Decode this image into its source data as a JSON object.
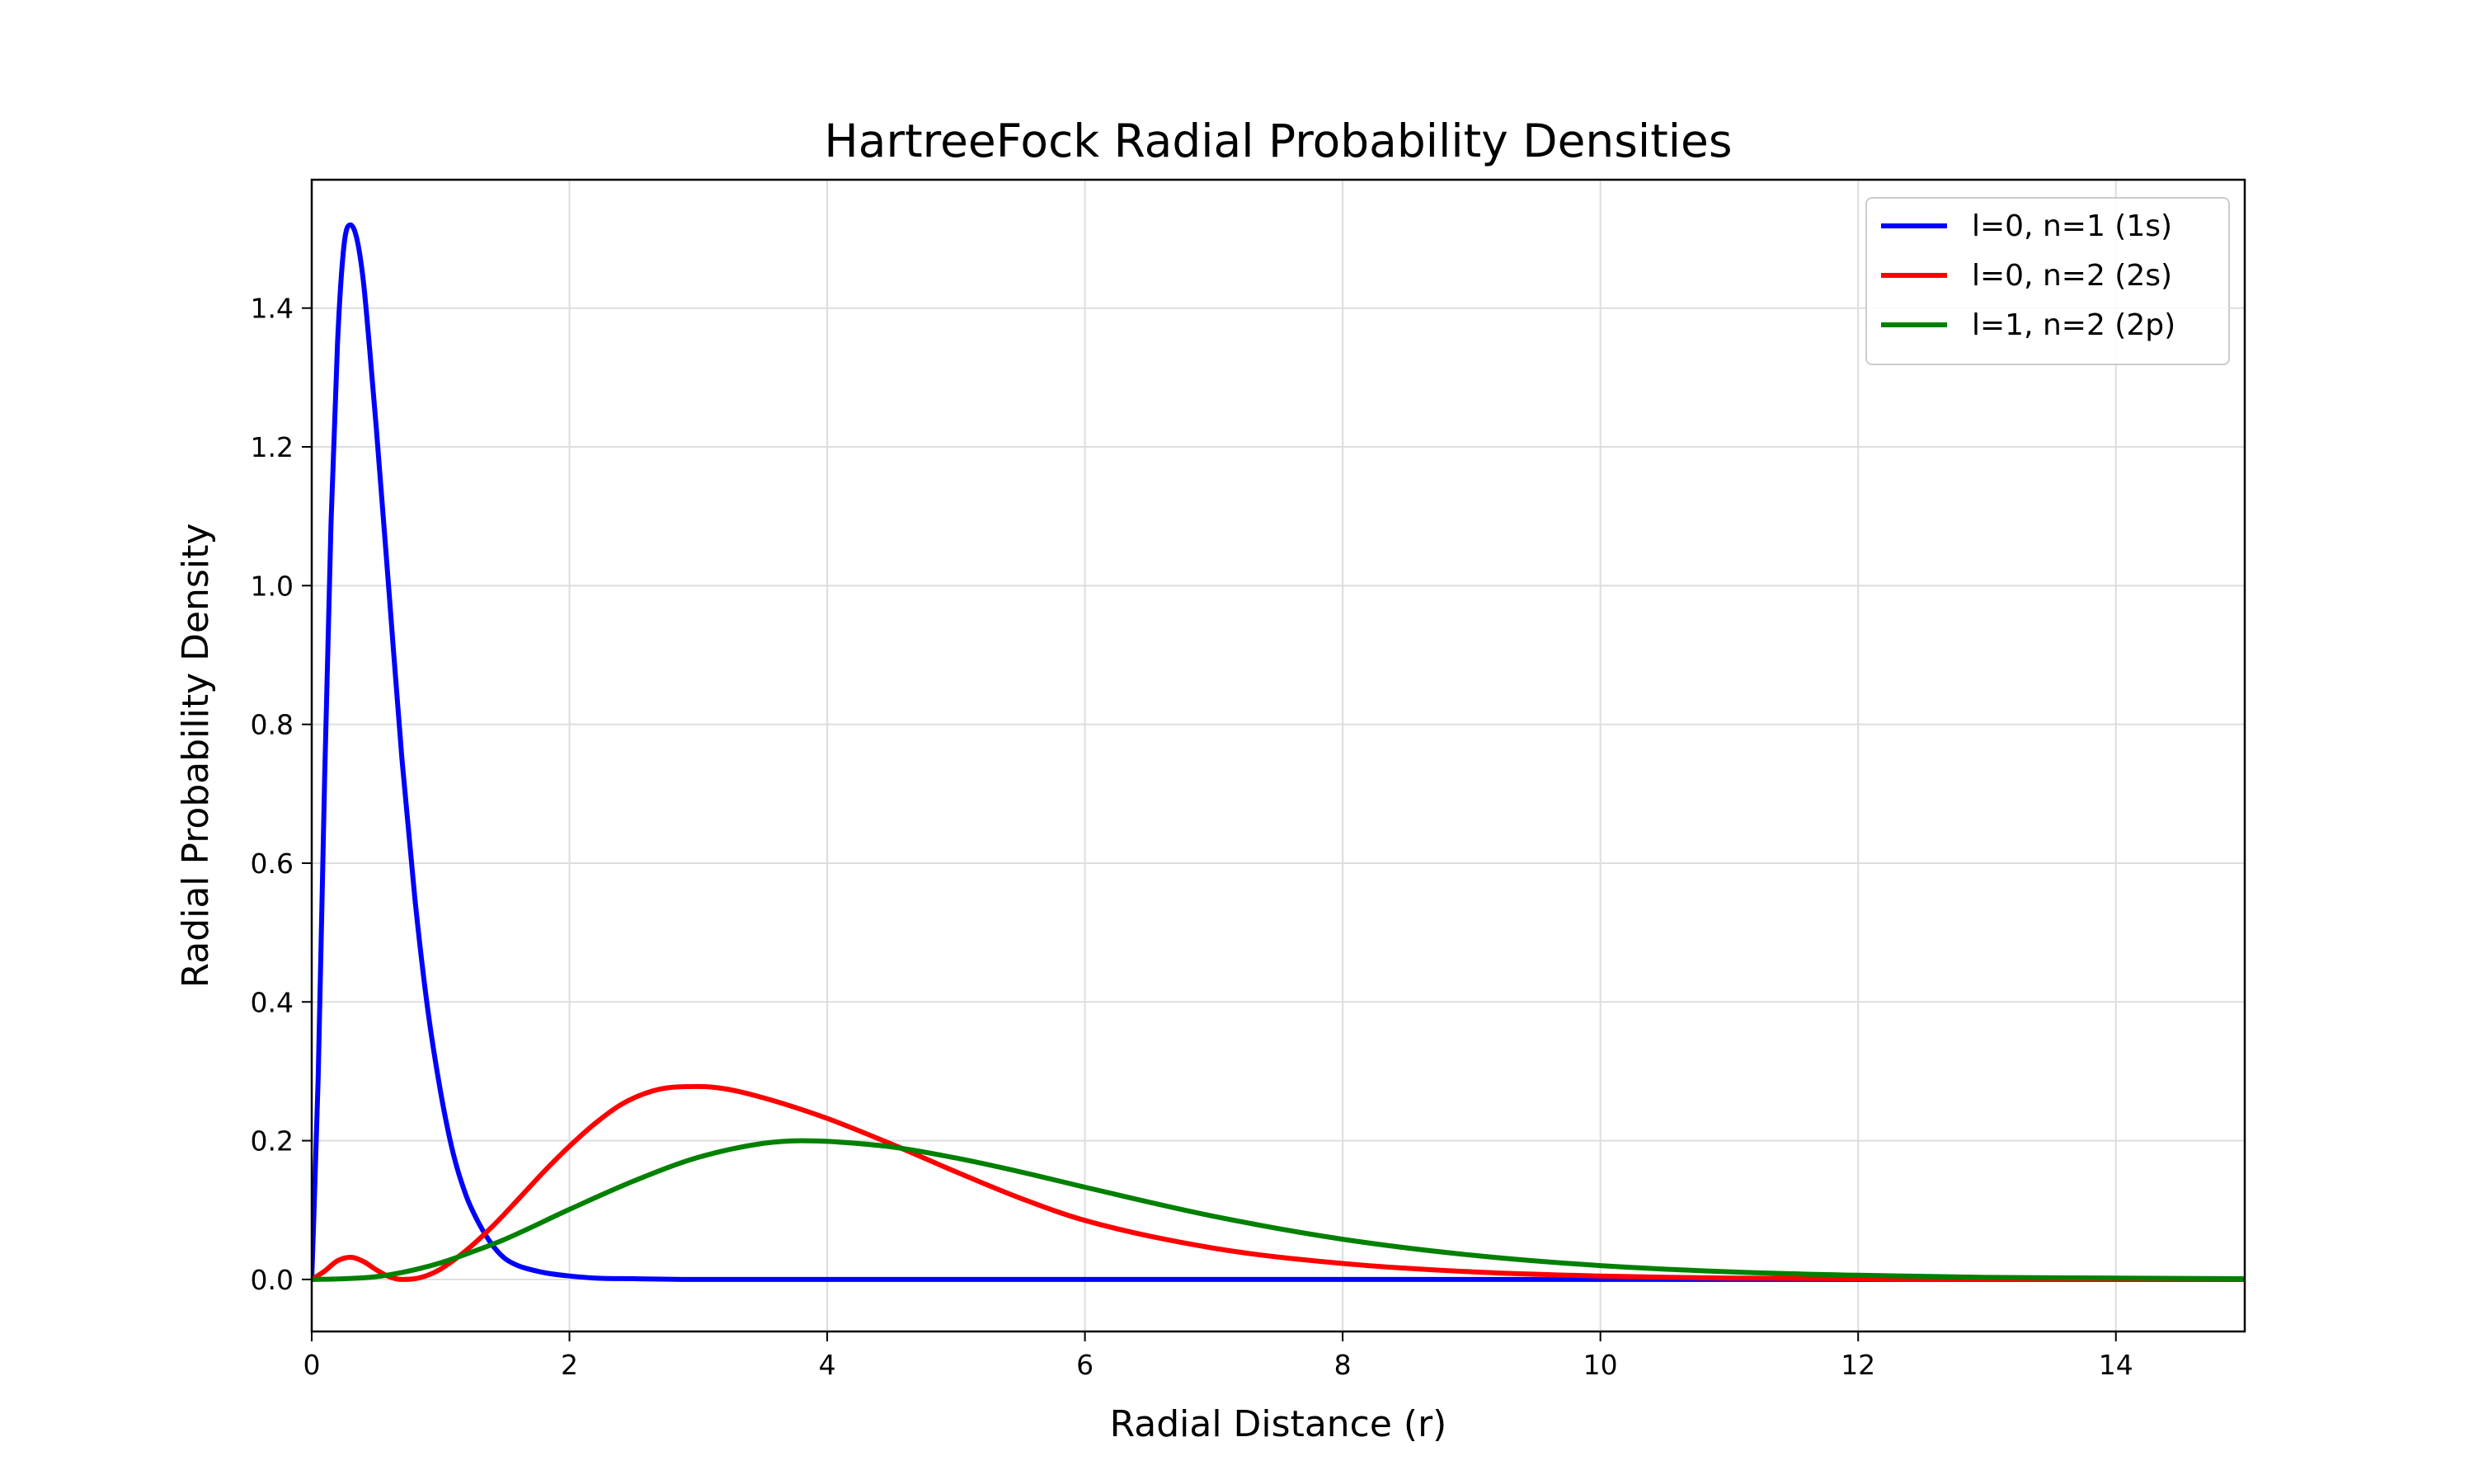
{
  "chart_data": {
    "type": "line",
    "title": "HartreeFock Radial Probability Densities",
    "xlabel": "Radial Distance (r)",
    "ylabel": "Radial Probability Density",
    "xlim": [
      0,
      15
    ],
    "ylim": [
      -0.075,
      1.585
    ],
    "xticks": [
      "0",
      "2",
      "4",
      "6",
      "8",
      "10",
      "12",
      "14"
    ],
    "yticks": [
      "0.0",
      "0.2",
      "0.4",
      "0.6",
      "0.8",
      "1.0",
      "1.2",
      "1.4"
    ],
    "grid": true,
    "legend_position": "top-right",
    "series": [
      {
        "name": "l=0, n=1 (1s)",
        "color": "#0000ff",
        "x": [
          0,
          0.05,
          0.1,
          0.15,
          0.2,
          0.25,
          0.3,
          0.35,
          0.4,
          0.45,
          0.5,
          0.6,
          0.7,
          0.8,
          0.9,
          1.0,
          1.1,
          1.2,
          1.3,
          1.4,
          1.5,
          1.6,
          1.8,
          2.0,
          2.2,
          2.5,
          3.0,
          4.0,
          6.0,
          8.0,
          10.0,
          12.0,
          15.0
        ],
        "y": [
          0,
          0.29,
          0.72,
          1.09,
          1.35,
          1.49,
          1.52,
          1.5,
          1.44,
          1.34,
          1.23,
          0.99,
          0.75,
          0.55,
          0.39,
          0.27,
          0.18,
          0.12,
          0.08,
          0.05,
          0.03,
          0.02,
          0.01,
          0.005,
          0.002,
          0.001,
          0,
          0,
          0,
          0,
          0,
          0,
          0
        ]
      },
      {
        "name": "l=0, n=2 (2s)",
        "color": "#ff0000",
        "x": [
          0,
          0.1,
          0.2,
          0.3,
          0.4,
          0.5,
          0.6,
          0.7,
          0.8,
          0.9,
          1.0,
          1.2,
          1.4,
          1.6,
          1.8,
          2.0,
          2.2,
          2.4,
          2.6,
          2.8,
          3.0,
          3.2,
          3.5,
          4.0,
          4.5,
          5.0,
          5.5,
          6.0,
          7.0,
          8.0,
          9.0,
          10.0,
          11.0,
          12.0,
          13.0,
          15.0
        ],
        "y": [
          0,
          0.012,
          0.027,
          0.032,
          0.026,
          0.014,
          0.004,
          0,
          0.001,
          0.006,
          0.015,
          0.042,
          0.076,
          0.115,
          0.155,
          0.192,
          0.225,
          0.252,
          0.269,
          0.277,
          0.278,
          0.275,
          0.262,
          0.232,
          0.195,
          0.155,
          0.117,
          0.085,
          0.045,
          0.023,
          0.011,
          0.005,
          0.002,
          0.001,
          0,
          0
        ]
      },
      {
        "name": "l=1, n=2 (2p)",
        "color": "#008000",
        "x": [
          0,
          0.25,
          0.5,
          0.75,
          1.0,
          1.25,
          1.5,
          2.0,
          2.5,
          3.0,
          3.5,
          3.8,
          4.0,
          4.5,
          5.0,
          5.5,
          6.0,
          7.0,
          8.0,
          9.0,
          10.0,
          11.0,
          12.0,
          13.0,
          14.0,
          15.0
        ],
        "y": [
          0,
          0.001,
          0.004,
          0.012,
          0.024,
          0.04,
          0.058,
          0.101,
          0.142,
          0.176,
          0.196,
          0.2,
          0.199,
          0.191,
          0.175,
          0.155,
          0.133,
          0.091,
          0.058,
          0.035,
          0.02,
          0.011,
          0.006,
          0.003,
          0.002,
          0.001
        ]
      }
    ]
  }
}
